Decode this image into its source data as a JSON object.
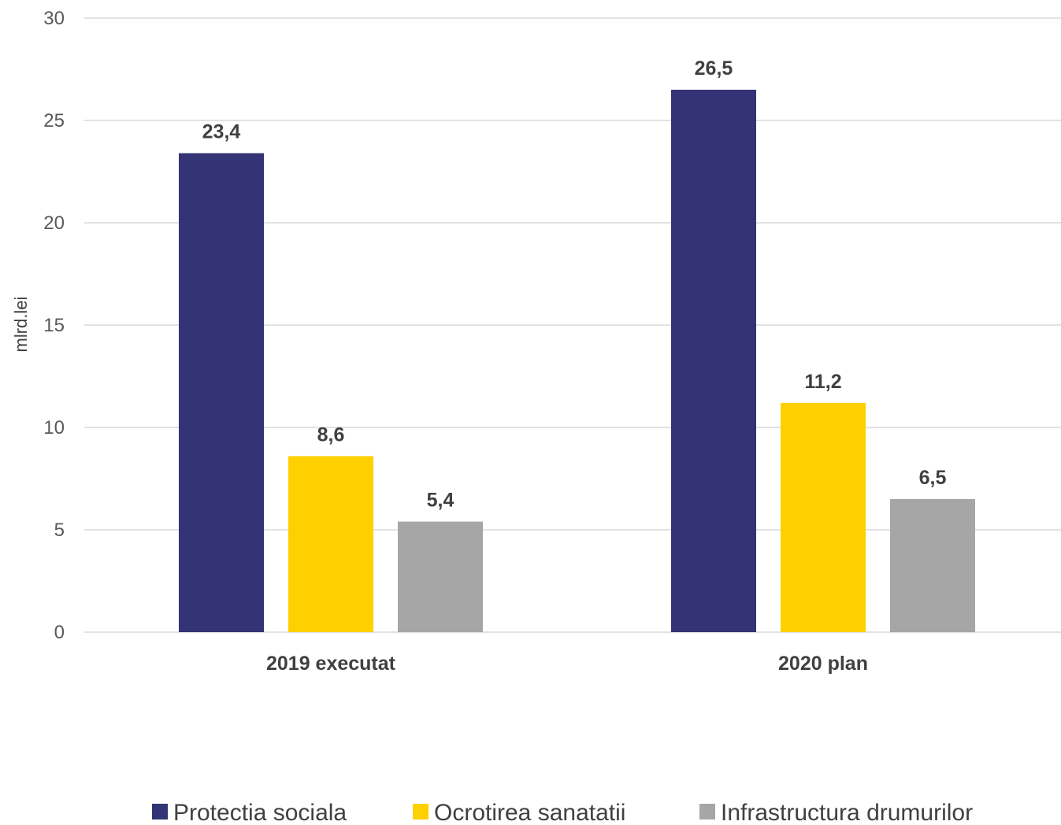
{
  "chart_data": {
    "type": "bar",
    "ylabel": "mlrd.lei",
    "ylim": [
      0,
      30
    ],
    "yticks": [
      0,
      5,
      10,
      15,
      20,
      25,
      30
    ],
    "grid": true,
    "legend_position": "bottom",
    "categories": [
      "2019 executat",
      "2020 plan"
    ],
    "series": [
      {
        "name": "Protectia sociala",
        "color": "#333375",
        "values": [
          23.4,
          26.5
        ],
        "labels": [
          "23,4",
          "26,5"
        ]
      },
      {
        "name": "Ocrotirea sanatatii",
        "color": "#ffd000",
        "values": [
          8.6,
          11.2
        ],
        "labels": [
          "8,6",
          "11,2"
        ]
      },
      {
        "name": "Infrastructura drumurilor",
        "color": "#a6a6a6",
        "values": [
          5.4,
          6.5
        ],
        "labels": [
          "5,4",
          "6,5"
        ]
      }
    ]
  }
}
